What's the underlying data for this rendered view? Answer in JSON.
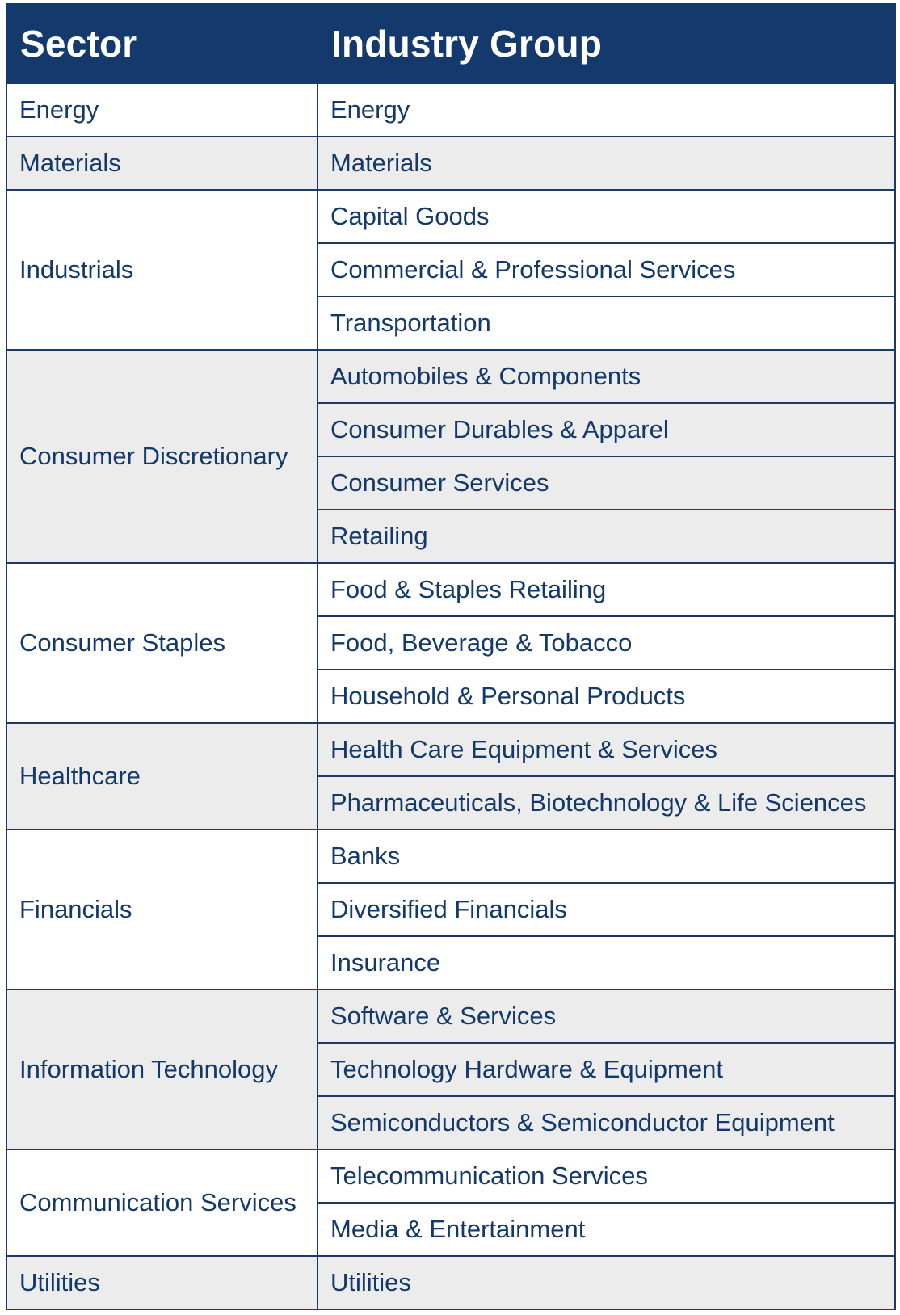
{
  "table": {
    "headers": [
      "Sector",
      "Industry Group"
    ],
    "sectors": [
      {
        "name": "Energy",
        "groups": [
          "Energy"
        ]
      },
      {
        "name": "Materials",
        "groups": [
          "Materials"
        ]
      },
      {
        "name": "Industrials",
        "groups": [
          "Capital Goods",
          "Commercial & Professional Services",
          "Transportation"
        ]
      },
      {
        "name": "Consumer Discretionary",
        "groups": [
          "Automobiles & Components",
          "Consumer Durables & Apparel",
          "Consumer Services",
          "Retailing"
        ]
      },
      {
        "name": "Consumer Staples",
        "groups": [
          "Food & Staples Retailing",
          "Food, Beverage & Tobacco",
          "Household & Personal Products"
        ]
      },
      {
        "name": "Healthcare",
        "groups": [
          "Health Care Equipment & Services",
          "Pharmaceuticals, Biotechnology & Life Sciences"
        ]
      },
      {
        "name": "Financials",
        "groups": [
          "Banks",
          "Diversified Financials",
          "Insurance"
        ]
      },
      {
        "name": "Information Technology",
        "groups": [
          "Software & Services",
          "Technology Hardware & Equipment",
          "Semiconductors & Semiconductor Equipment"
        ]
      },
      {
        "name": "Communication Services",
        "groups": [
          "Telecommunication Services",
          "Media & Entertainment"
        ]
      },
      {
        "name": "Utilities",
        "groups": [
          "Utilities"
        ]
      }
    ]
  },
  "colors": {
    "header_bg": "#143a6d",
    "header_text": "#ffffff",
    "text": "#13386b",
    "row_shade": "#ececec",
    "row_plain": "#ffffff",
    "border": "#1b3a64"
  }
}
